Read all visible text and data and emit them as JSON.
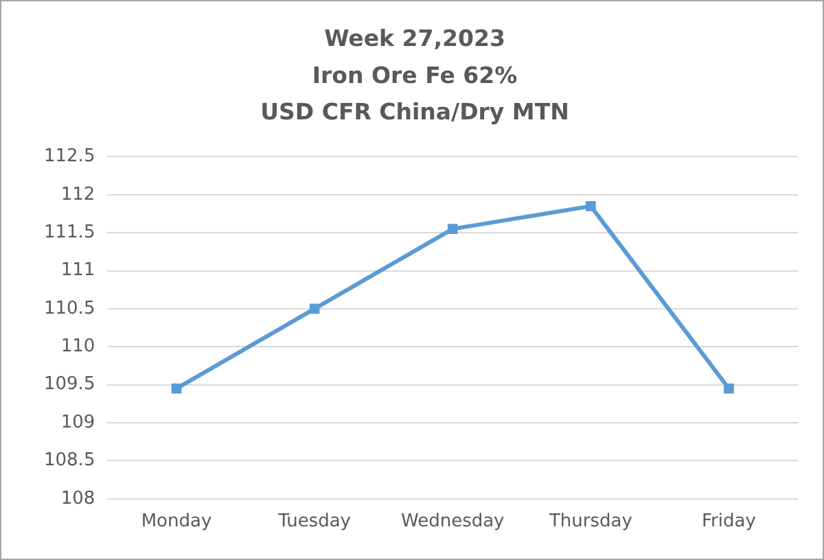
{
  "chart_data": {
    "type": "line",
    "title": "Week 27,2023\nIron Ore Fe 62%\nUSD CFR China/Dry MTN",
    "categories": [
      "Monday",
      "Tuesday",
      "Wednesday",
      "Thursday",
      "Friday"
    ],
    "values": [
      109.45,
      110.5,
      111.55,
      111.85,
      109.45
    ],
    "color": "#5b9bd5",
    "ylim": [
      108,
      112.5
    ],
    "yticks": [
      108,
      108.5,
      109,
      109.5,
      110,
      110.5,
      111,
      111.5,
      112,
      112.5
    ],
    "grid": "y",
    "marker": "square",
    "line_style": "solid"
  }
}
